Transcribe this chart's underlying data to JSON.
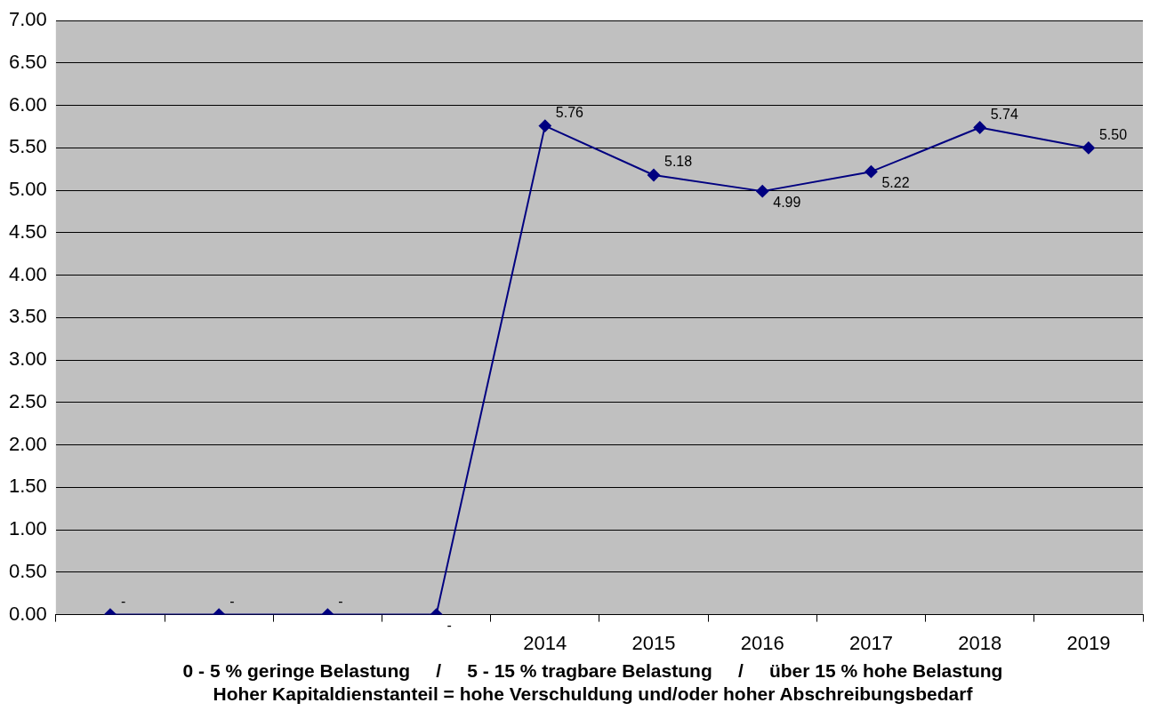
{
  "chart_data": {
    "type": "line",
    "categories": [
      null,
      null,
      null,
      null,
      "2014",
      "2015",
      "2016",
      "2017",
      "2018",
      "2019"
    ],
    "series": [
      {
        "color": "#000080",
        "values": [
          0,
          0,
          0,
          0,
          5.76,
          5.18,
          4.99,
          5.22,
          5.74,
          5.5
        ],
        "value_labels": [
          "-",
          "-",
          "-",
          "-",
          "5.76",
          "5.18",
          "4.99",
          "5.22",
          "5.74",
          "5.50"
        ]
      }
    ],
    "ylim": [
      0,
      7
    ],
    "yticks": [
      {
        "value": 0,
        "label": "0.00"
      },
      {
        "value": 0.5,
        "label": "0.50"
      },
      {
        "value": 1,
        "label": "1.00"
      },
      {
        "value": 1.5,
        "label": "1.50"
      },
      {
        "value": 2,
        "label": "2.00"
      },
      {
        "value": 2.5,
        "label": "2.50"
      },
      {
        "value": 3,
        "label": "3.00"
      },
      {
        "value": 3.5,
        "label": "3.50"
      },
      {
        "value": 4,
        "label": "4.00"
      },
      {
        "value": 4.5,
        "label": "4.50"
      },
      {
        "value": 5,
        "label": "5.00"
      },
      {
        "value": 5.5,
        "label": "5.50"
      },
      {
        "value": 6,
        "label": "6.00"
      },
      {
        "value": 6.5,
        "label": "6.50"
      },
      {
        "value": 7,
        "label": "7.00"
      }
    ],
    "grid": "y",
    "legend": false,
    "marker": "diamond",
    "line_style": "solid",
    "annotations": [
      "0 - 5 % geringe Belastung     /     5 - 15 % tragbare Belastung     /     über 15 % hohe Belastung",
      "Hoher Kapitaldienstanteil = hohe Verschuldung und/oder hoher Abschreibungsbedarf"
    ]
  }
}
